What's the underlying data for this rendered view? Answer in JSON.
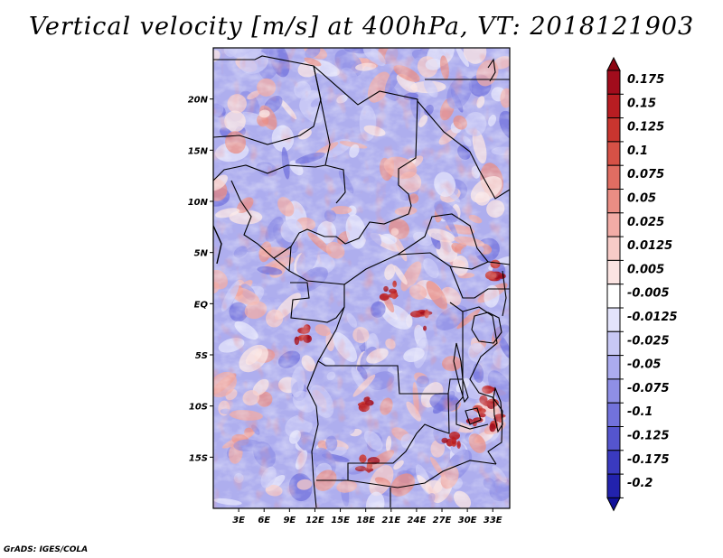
{
  "title": "Vertical velocity [m/s] at 400hPa, VT: 2018121903",
  "credit": "GrADS: IGES/COLA",
  "map": {
    "lon_range": [
      0,
      35
    ],
    "lat_range": [
      -20,
      25
    ],
    "lat_ticks": [
      {
        "value": 20,
        "label": "20N"
      },
      {
        "value": 15,
        "label": "15N"
      },
      {
        "value": 10,
        "label": "10N"
      },
      {
        "value": 5,
        "label": "5N"
      },
      {
        "value": 0,
        "label": "EQ"
      },
      {
        "value": -5,
        "label": "5S"
      },
      {
        "value": -10,
        "label": "10S"
      },
      {
        "value": -15,
        "label": "15S"
      }
    ],
    "lon_ticks": [
      {
        "value": 3,
        "label": "3E"
      },
      {
        "value": 6,
        "label": "6E"
      },
      {
        "value": 9,
        "label": "9E"
      },
      {
        "value": 12,
        "label": "12E"
      },
      {
        "value": 15,
        "label": "15E"
      },
      {
        "value": 18,
        "label": "18E"
      },
      {
        "value": 21,
        "label": "21E"
      },
      {
        "value": 24,
        "label": "24E"
      },
      {
        "value": 27,
        "label": "27E"
      },
      {
        "value": 30,
        "label": "30E"
      },
      {
        "value": 33,
        "label": "33E"
      }
    ]
  },
  "colorbar": {
    "levels": [
      {
        "label": "0.175",
        "color": "#a10c1c"
      },
      {
        "label": "0.15",
        "color": "#b81d22"
      },
      {
        "label": "0.125",
        "color": "#c9352f"
      },
      {
        "label": "0.1",
        "color": "#d65146"
      },
      {
        "label": "0.075",
        "color": "#e06d62"
      },
      {
        "label": "0.05",
        "color": "#ea8d84"
      },
      {
        "label": "0.025",
        "color": "#f2aca6"
      },
      {
        "label": "0.0125",
        "color": "#f7cbc7"
      },
      {
        "label": "0.005",
        "color": "#fbe4e2"
      },
      {
        "label": "-0.005",
        "color": "#ffffff"
      },
      {
        "label": "-0.0125",
        "color": "#e4e4fb"
      },
      {
        "label": "-0.025",
        "color": "#c8c8f5"
      },
      {
        "label": "-0.05",
        "color": "#ababef"
      },
      {
        "label": "-0.075",
        "color": "#8f8fe6"
      },
      {
        "label": "-0.1",
        "color": "#7272dc"
      },
      {
        "label": "-0.125",
        "color": "#5555ce"
      },
      {
        "label": "-0.175",
        "color": "#3a3abf"
      },
      {
        "label": "-0.2",
        "color": "#2222ad"
      }
    ],
    "top_color": "#8c0612",
    "bottom_color": "#10109a"
  }
}
